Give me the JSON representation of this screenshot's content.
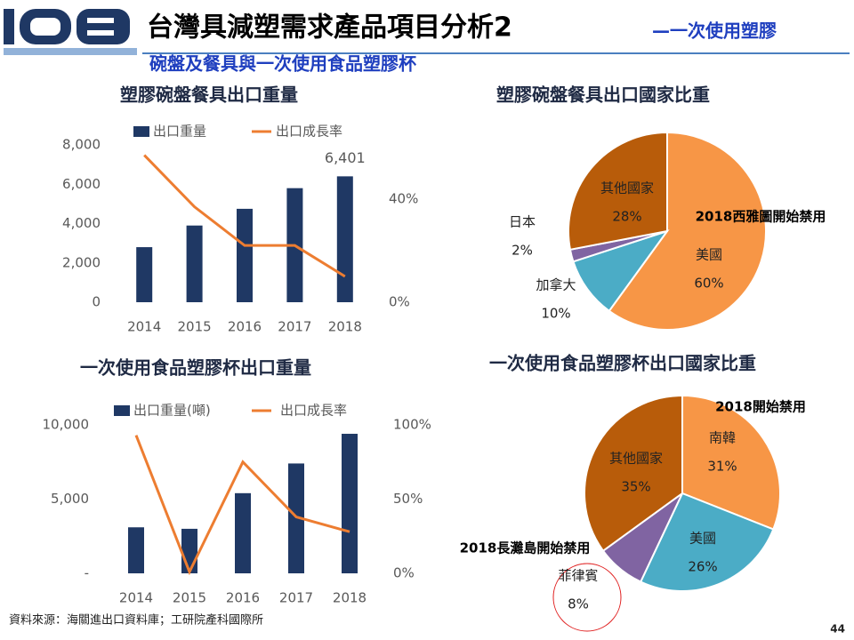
{
  "header": {
    "title": "台灣具減塑需求產品項目分析2",
    "subtitle": "—一次使用塑膠",
    "subtitle2": "碗盤及餐具與一次使用食品塑膠杯"
  },
  "footer": {
    "source": "資料來源：海關進出口資料庫；工研院產科國際所",
    "page": "44"
  },
  "chart_data": [
    {
      "type": "combo",
      "title": "塑膠碗盤餐具出口重量",
      "categories": [
        "2014",
        "2015",
        "2016",
        "2017",
        "2018"
      ],
      "series": [
        {
          "name": "出口重量",
          "color": "#1f3864",
          "values": [
            2800,
            3900,
            4750,
            5800,
            6401
          ],
          "value_labels": [
            null,
            null,
            null,
            null,
            "6,401"
          ]
        },
        {
          "name": "出口成長率",
          "color": "#ed7d31",
          "axis": "y2",
          "values": [
            57,
            37,
            22,
            22,
            10
          ]
        }
      ],
      "ylim": [
        0,
        8000
      ],
      "yticks": [
        0,
        {
          "value": 2000,
          "label": "2,000"
        },
        {
          "value": 4000,
          "label": "4,000"
        },
        {
          "value": 6000,
          "label": "6,000"
        },
        {
          "value": 8000,
          "label": "8,000"
        }
      ],
      "y2lim": [
        0,
        61
      ],
      "y2ticks": [
        {
          "value": 0,
          "label": "0%"
        },
        {
          "value": 40,
          "label": "40%"
        }
      ]
    },
    {
      "type": "pie",
      "title": "塑膠碗盤餐具出口國家比重",
      "categories": [
        "美國",
        "加拿大",
        "日本",
        "其他國家"
      ],
      "values": [
        60,
        10,
        2,
        28
      ],
      "value_labels": [
        "60%",
        "10%",
        "2%",
        "28%"
      ],
      "colors": [
        "#f79646",
        "#4bacc6",
        "#8064a2",
        "#b85c0a"
      ],
      "annotations": [
        "2018西雅圖開始禁用"
      ]
    },
    {
      "type": "combo",
      "title": "一次使用食品塑膠杯出口重量",
      "categories": [
        "2014",
        "2015",
        "2016",
        "2017",
        "2018"
      ],
      "series": [
        {
          "name": "出口重量(噸)",
          "color": "#1f3864",
          "values": [
            3100,
            3000,
            5400,
            7400,
            9400
          ]
        },
        {
          "name": "出口成長率",
          "color": "#ed7d31",
          "axis": "y2",
          "values": [
            93,
            1,
            75,
            38,
            28
          ]
        }
      ],
      "ylim": [
        0,
        10000
      ],
      "yticks": [
        {
          "value": 0,
          "label": "-"
        },
        {
          "value": 5000,
          "label": "5,000"
        },
        {
          "value": 10000,
          "label": "10,000"
        }
      ],
      "y2lim": [
        0,
        100
      ],
      "y2ticks": [
        {
          "value": 0,
          "label": "0%"
        },
        {
          "value": 50,
          "label": "50%"
        },
        {
          "value": 100,
          "label": "100%"
        }
      ]
    },
    {
      "type": "pie",
      "title": "一次使用食品塑膠杯出口國家比重",
      "categories": [
        "南韓",
        "美國",
        "菲律賓",
        "其他國家"
      ],
      "values": [
        31,
        26,
        8,
        35
      ],
      "value_labels": [
        "31%",
        "26%",
        "8%",
        "35%"
      ],
      "colors": [
        "#f79646",
        "#4bacc6",
        "#8064a2",
        "#b85c0a"
      ],
      "annotations": [
        "2018開始禁用",
        "2018長灘島開始禁用"
      ]
    }
  ]
}
